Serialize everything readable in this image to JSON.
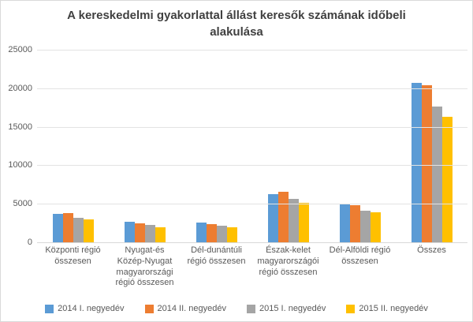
{
  "title": "A kereskedelmi gyakorlattal állást keresők számának időbeli alakulása",
  "colors": {
    "series_blue": "#5b9bd5",
    "series_orange": "#ed7d31",
    "series_gray": "#a5a5a5",
    "series_yellow": "#ffc000",
    "title_text": "#404040",
    "axis_text": "#595959",
    "gridline": "#e3e3e3"
  },
  "chart_data": {
    "type": "bar",
    "title": "A kereskedelmi gyakorlattal állást keresők számának időbeli alakulása",
    "categories": [
      "Központi régió összesen",
      "Nyugat-és Közép-Nyugat magyarországi régió összesen",
      "Dél-dunántúli régió összesen",
      "Észak-kelet magyarországói régió összesen",
      "Dél-Alföldi régió összesen",
      "Összes"
    ],
    "series": [
      {
        "name": "2014 I. negyedév",
        "color": "#5b9bd5",
        "values": [
          3700,
          2700,
          2600,
          6300,
          5000,
          20700
        ]
      },
      {
        "name": "2014 II. negyedév",
        "color": "#ed7d31",
        "values": [
          3800,
          2450,
          2350,
          6600,
          4850,
          20400
        ]
      },
      {
        "name": "2015 I. negyedév",
        "color": "#a5a5a5",
        "values": [
          3200,
          2250,
          2150,
          5600,
          4100,
          17600
        ]
      },
      {
        "name": "2015 II. negyedév",
        "color": "#ffc000",
        "values": [
          3000,
          1950,
          1900,
          5150,
          3900,
          16300
        ]
      }
    ],
    "xlabel": "",
    "ylabel": "",
    "ylim": [
      0,
      25000
    ],
    "yticks": [
      0,
      5000,
      10000,
      15000,
      20000,
      25000
    ],
    "grid": true,
    "legend_position": "bottom"
  }
}
